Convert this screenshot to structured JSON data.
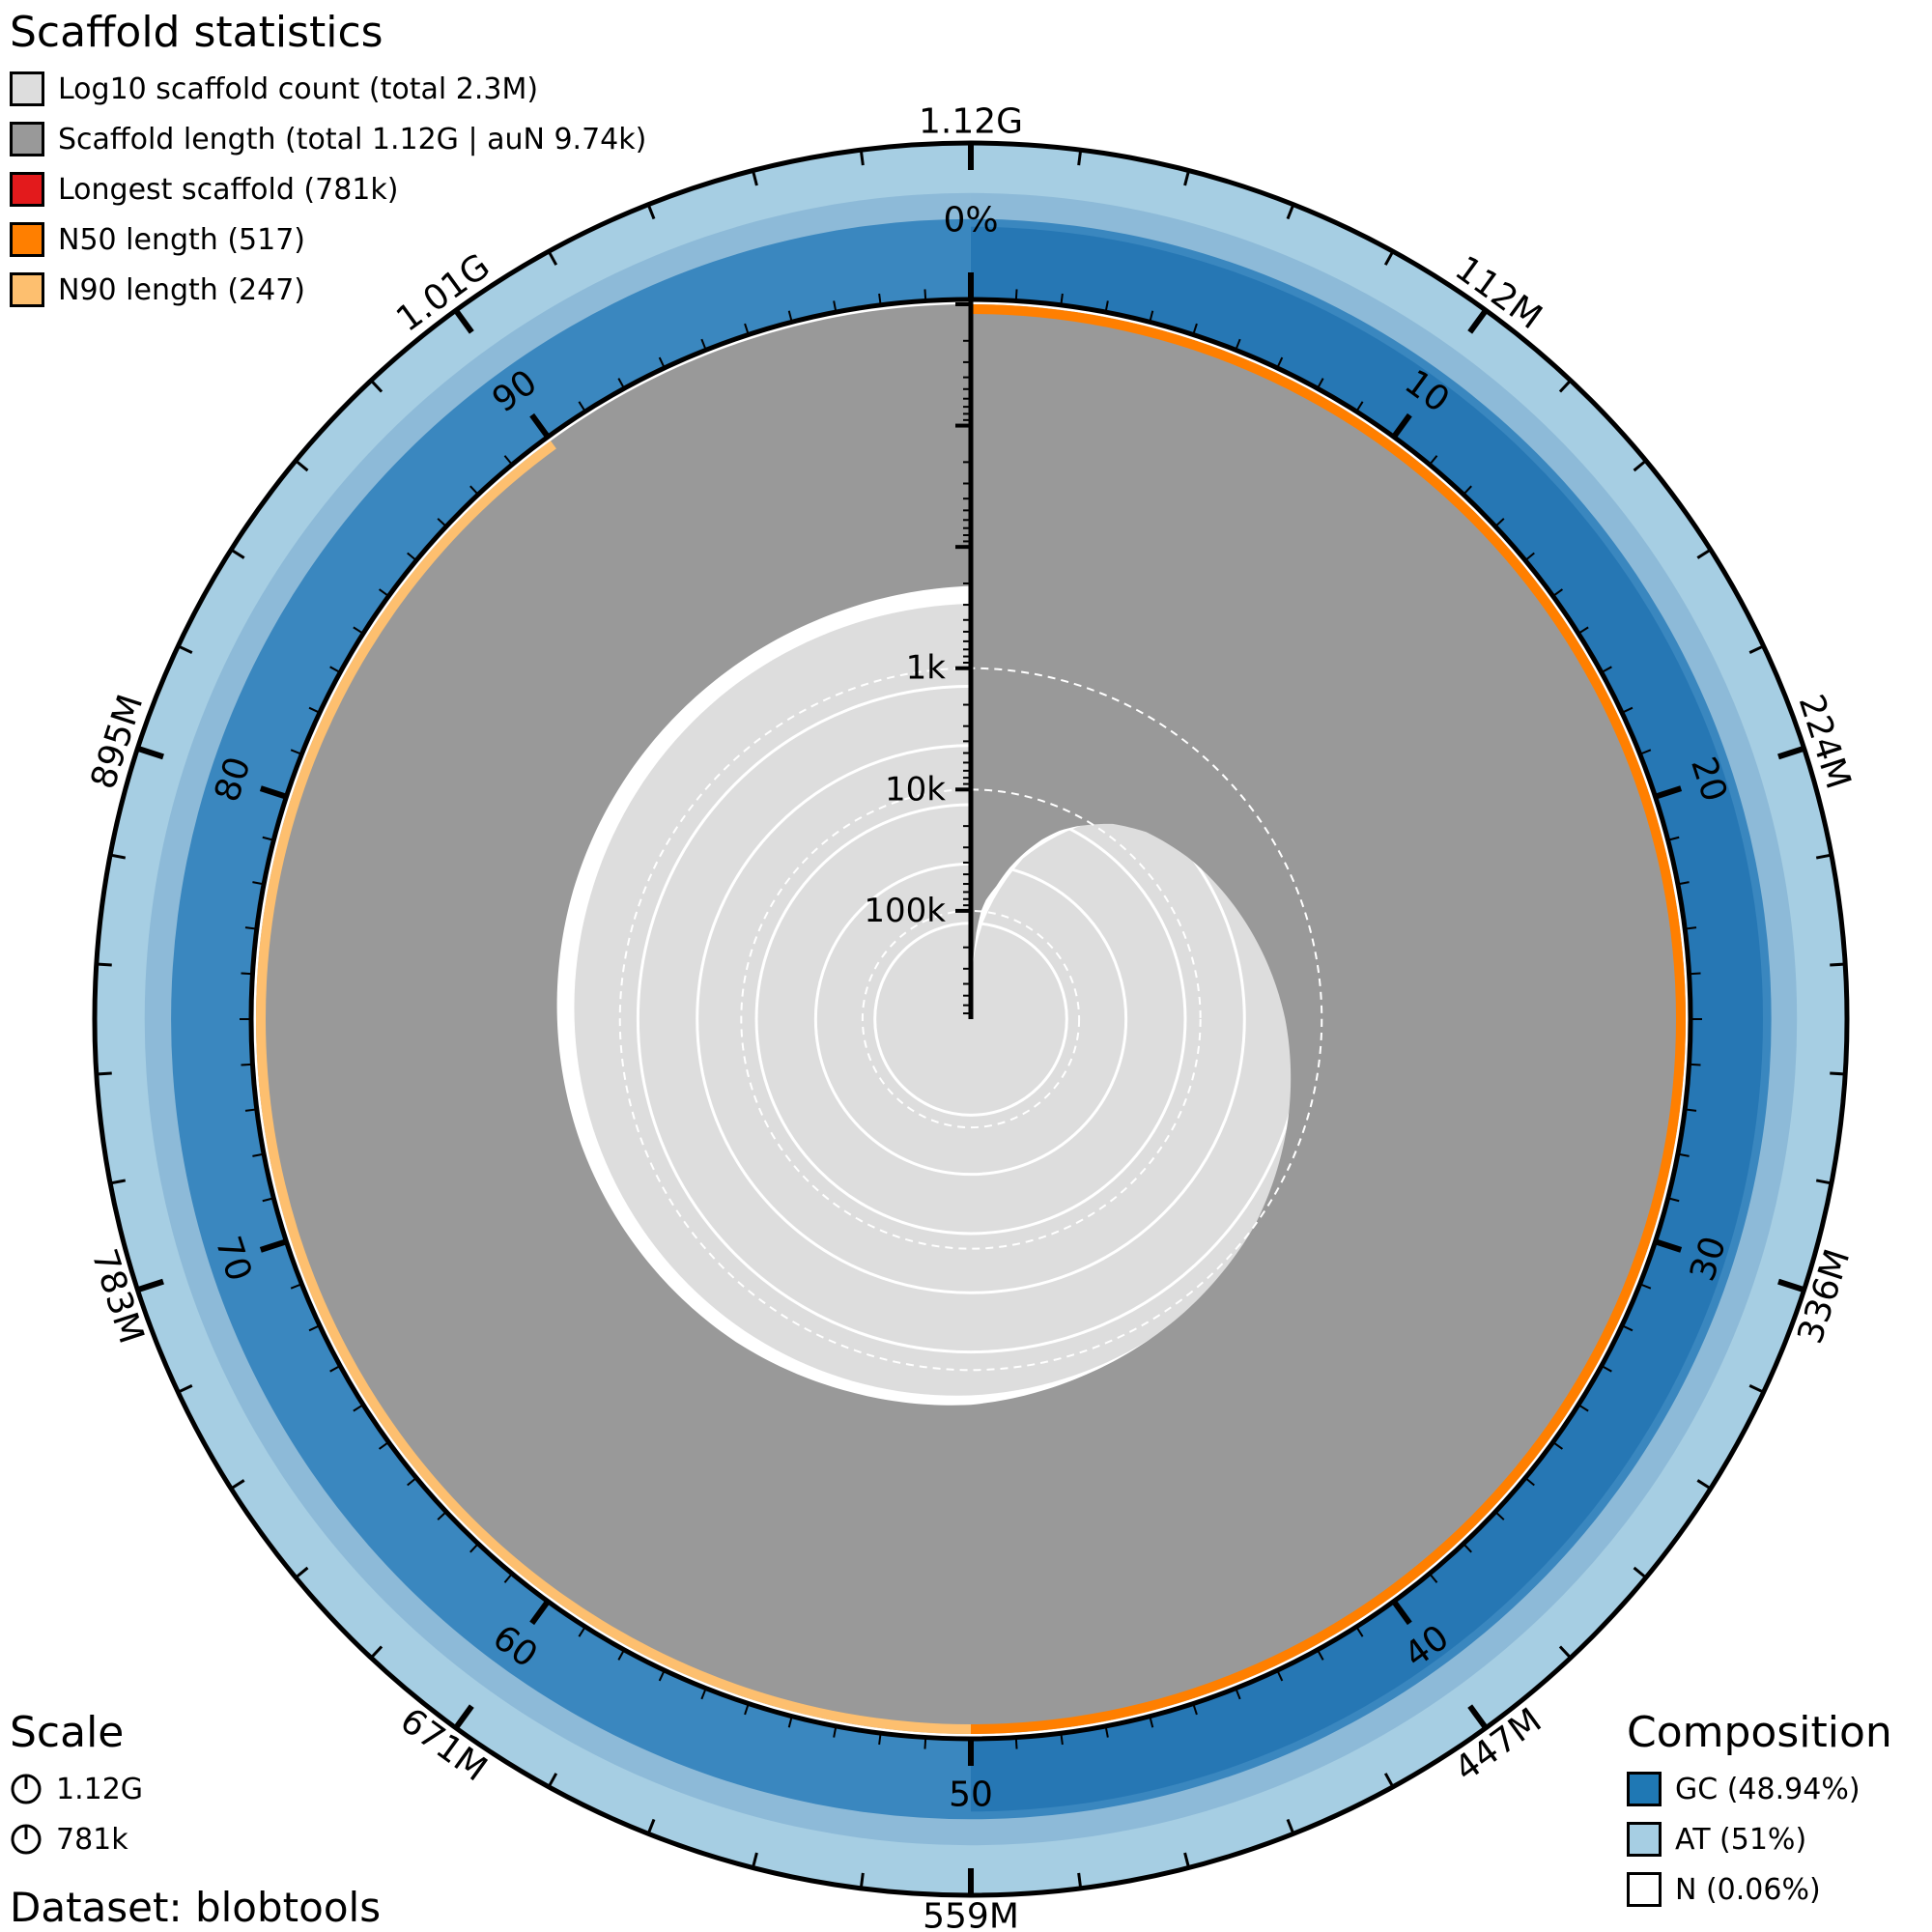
{
  "chart_data": {
    "type": "snail",
    "title": "Scaffold statistics",
    "scaffold_stats": {
      "total_length": "1.12G",
      "scaffold_count": "2.3M",
      "auN": "9.74k",
      "longest": 781000,
      "n50": 517,
      "n90": 247,
      "n50_position_percent": 50,
      "n90_position_percent": 90
    },
    "legend": [
      {
        "label": "Log10 scaffold count (total 2.3M)",
        "color": "#dddddd"
      },
      {
        "label": "Scaffold length (total 1.12G | auN 9.74k)",
        "color": "#999999"
      },
      {
        "label": "Longest scaffold (781k)",
        "color": "#e31a1c"
      },
      {
        "label": "N50 length (517)",
        "color": "#ff7f00"
      },
      {
        "label": "N90 length (247)",
        "color": "#fdbf6f"
      }
    ],
    "outer_ticks": [
      "1.12G",
      "112M",
      "224M",
      "336M",
      "447M",
      "559M",
      "671M",
      "783M",
      "895M",
      "1.01G"
    ],
    "percent_ticks": [
      "0%",
      "10",
      "20",
      "30",
      "40",
      "50",
      "60",
      "70",
      "80",
      "90"
    ],
    "radial_axis": {
      "scale": "log",
      "labels": [
        "1k",
        "10k",
        "100k"
      ],
      "values": [
        1000,
        10000,
        100000
      ],
      "max": 781000
    },
    "length_profile": {
      "percent": [
        0,
        0.5,
        1,
        1.5,
        2,
        3,
        4,
        5,
        6,
        7,
        8,
        10,
        12,
        15,
        20,
        25,
        30,
        35,
        40,
        45,
        50,
        55,
        60,
        70,
        80,
        90,
        95,
        100
      ],
      "length": [
        781000,
        300000,
        150000,
        100000,
        80000,
        60000,
        40000,
        28000,
        20000,
        15000,
        12000,
        8000,
        6000,
        4500,
        3000,
        2000,
        1400,
        1000,
        800,
        650,
        517,
        460,
        400,
        330,
        280,
        247,
        230,
        210
      ]
    },
    "count_profile": {
      "percent": [
        0,
        2,
        5,
        10,
        15,
        20,
        30,
        40,
        50,
        60,
        70,
        80,
        90,
        100
      ],
      "log10_count": [
        0,
        1.0,
        2.2,
        3.6,
        4.3,
        4.7,
        5.2,
        5.5,
        5.7,
        5.85,
        5.98,
        6.1,
        6.25,
        6.36
      ]
    },
    "count_max_log10": 6.36,
    "composition": [
      {
        "label": "GC (48.94%)",
        "value": 48.94,
        "color": "#1f78b4"
      },
      {
        "label": "AT (51%)",
        "value": 51.0,
        "color": "#a6cee3"
      },
      {
        "label": "N (0.06%)",
        "value": 0.06,
        "color": "#ffffff"
      }
    ],
    "gc_band": {
      "mean_percent": 48.94,
      "min_percent": 46,
      "max_percent": 52
    }
  },
  "scale": {
    "title": "Scale",
    "items": [
      "1.12G",
      "781k"
    ]
  },
  "composition_title": "Composition",
  "dataset": "Dataset: blobtools"
}
